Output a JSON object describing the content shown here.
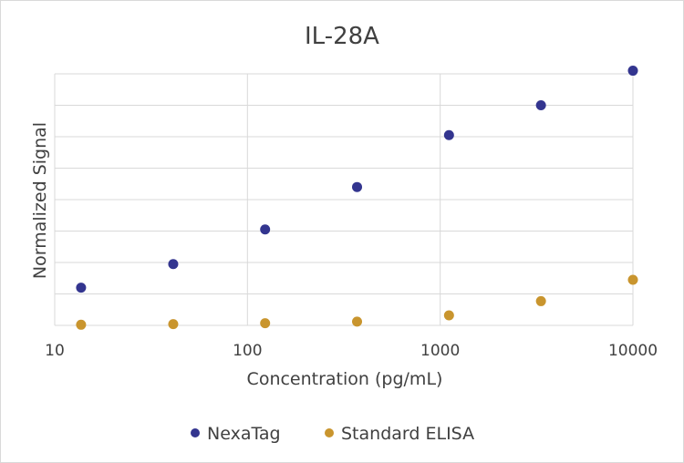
{
  "chart_data": {
    "type": "scatter",
    "title": "IL-28A",
    "xlabel": "Concentration (pg/mL)",
    "ylabel": "Normalized Signal",
    "x_scale": "log",
    "xlim": [
      10,
      10000
    ],
    "ylim": [
      0,
      8
    ],
    "x_ticks": [
      10,
      100,
      1000,
      10000
    ],
    "x_tick_labels": [
      "10",
      "100",
      "1000",
      "10000"
    ],
    "y_ticks": [
      0,
      1,
      2,
      3,
      4,
      5,
      6,
      7,
      8
    ],
    "y_tick_labels_shown": false,
    "grid": true,
    "legend_position": "bottom",
    "series": [
      {
        "name": "NexaTag",
        "color": "#33358f",
        "x": [
          13.7,
          41.2,
          123.5,
          370.4,
          1111,
          3333,
          10000
        ],
        "y": [
          1.2,
          1.95,
          3.05,
          4.4,
          6.05,
          7.0,
          8.1
        ]
      },
      {
        "name": "Standard ELISA",
        "color": "#c9952e",
        "x": [
          13.7,
          41.2,
          123.5,
          370.4,
          1111,
          3333,
          10000
        ],
        "y": [
          0.02,
          0.04,
          0.07,
          0.12,
          0.32,
          0.77,
          1.45
        ]
      }
    ]
  }
}
